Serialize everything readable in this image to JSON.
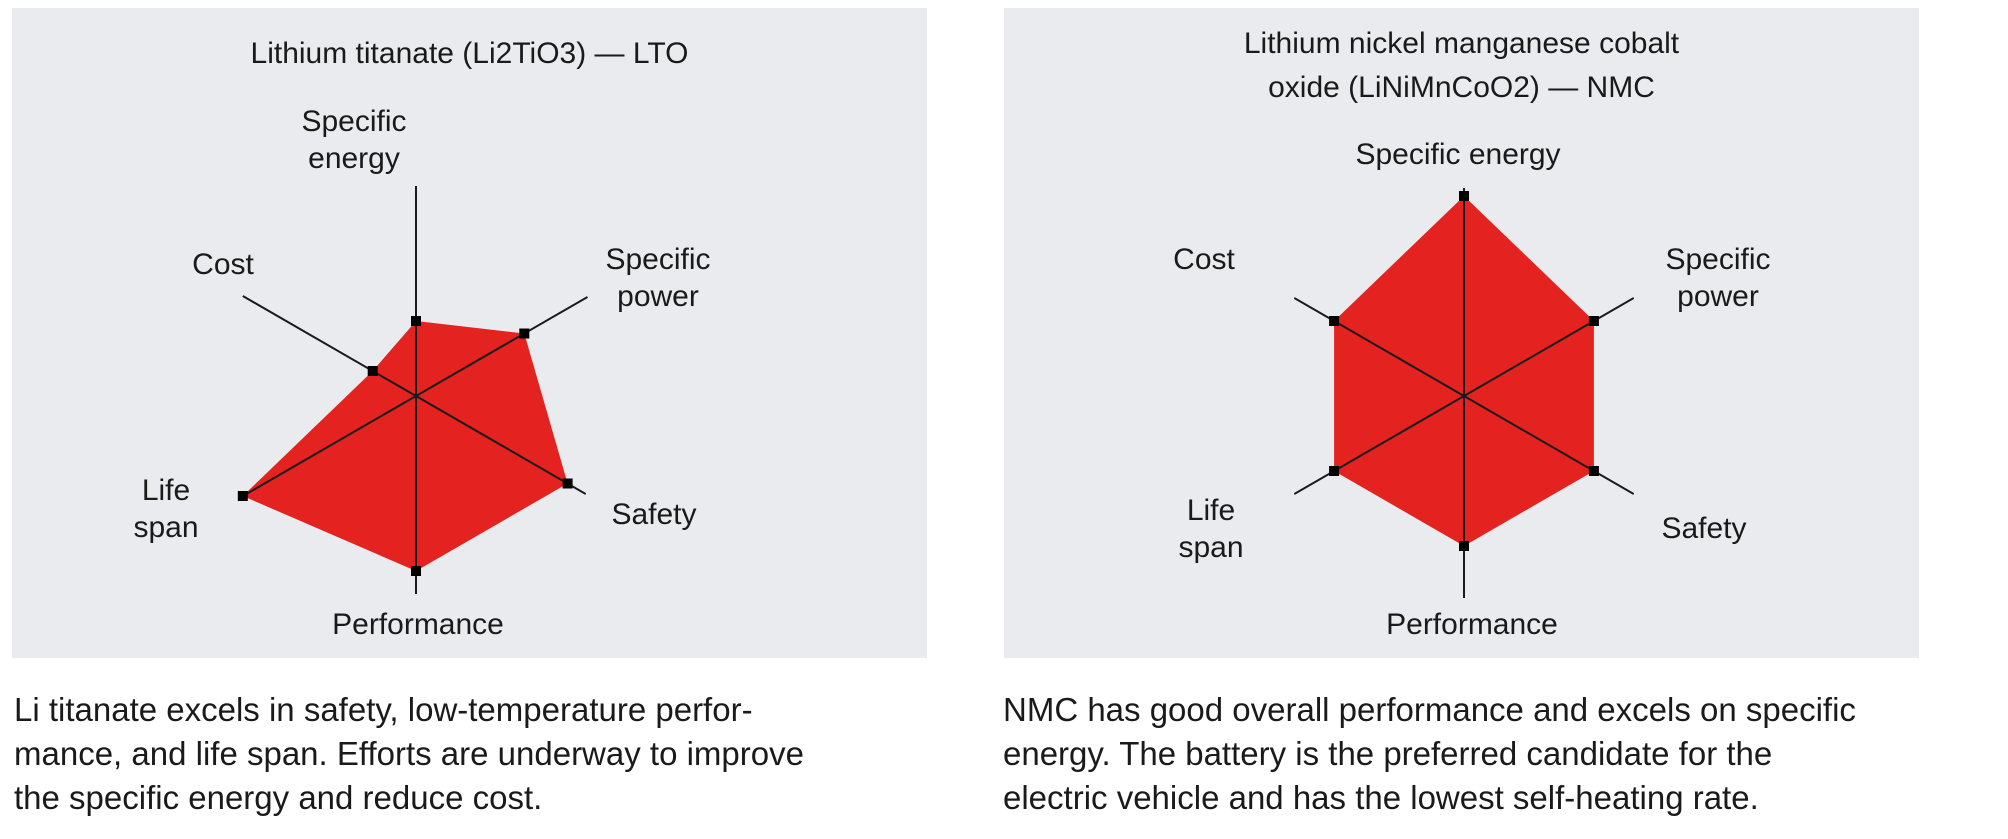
{
  "chart_data": [
    {
      "type": "radar",
      "title": "Lithium titanate (Li2TiO3) — LTO",
      "axes": [
        "Specific energy",
        "Specific power",
        "Safety",
        "Performance",
        "Life span",
        "Cost"
      ],
      "axis_labels": [
        {
          "lines": [
            "Specific",
            "energy"
          ]
        },
        {
          "lines": [
            "Specific",
            "power"
          ]
        },
        {
          "lines": [
            "Safety"
          ]
        },
        {
          "lines": [
            "Performance"
          ]
        },
        {
          "lines": [
            "Life",
            "span"
          ]
        },
        {
          "lines": [
            "Cost"
          ]
        }
      ],
      "values": [
        1.5,
        2.5,
        3.5,
        3.5,
        4,
        1
      ],
      "max": 4,
      "color": "#e42320"
    },
    {
      "type": "radar",
      "title": "Lithium nickel manganese cobalt oxide (LiNiMnCoO2) — NMC",
      "axes": [
        "Specific energy",
        "Specific power",
        "Safety",
        "Performance",
        "Life span",
        "Cost"
      ],
      "axis_labels": [
        {
          "lines": [
            "Specific energy"
          ]
        },
        {
          "lines": [
            "Specific",
            "power"
          ]
        },
        {
          "lines": [
            "Safety"
          ]
        },
        {
          "lines": [
            "Performance"
          ]
        },
        {
          "lines": [
            "Life",
            "span"
          ]
        },
        {
          "lines": [
            "Cost"
          ]
        }
      ],
      "values": [
        4,
        3,
        3,
        3,
        3,
        3
      ],
      "max": 4,
      "color": "#e42320"
    }
  ],
  "panels": [
    {
      "title_lines": [
        "Lithium titanate (Li2TiO3) — LTO"
      ],
      "caption_lines": [
        "Li titanate excels in safety, low-temperature perfor-",
        "mance, and life span. Efforts are underway to improve",
        "the specific energy and reduce cost."
      ]
    },
    {
      "title_lines": [
        "Lithium nickel manganese cobalt",
        "oxide (LiNiMnCoO2) — NMC"
      ],
      "caption_lines": [
        "NMC has good overall performance and excels on specific",
        "energy. The battery is the preferred candidate for the",
        "electric vehicle and has the lowest self-heating rate."
      ]
    }
  ],
  "colors": {
    "fill": "#e42320",
    "panel_bg": "#e9ebee",
    "line": "#1a1a1a"
  }
}
